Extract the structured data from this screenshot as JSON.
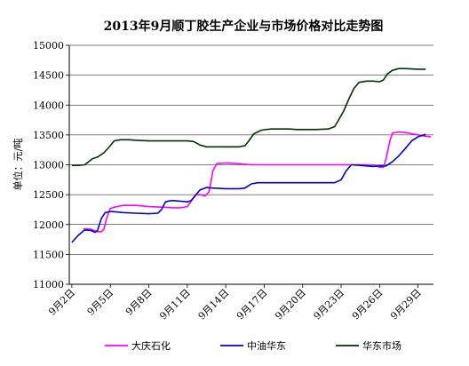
{
  "chart_data": {
    "type": "line",
    "title": "2013年9月顺丁胶生产企业与市场价格对比走势图",
    "ylabel": "单位：元/吨",
    "xlabel": "",
    "ylim": [
      11000,
      15000
    ],
    "y_ticks": [
      11000,
      11500,
      12000,
      12500,
      13000,
      13500,
      14000,
      14500,
      15000
    ],
    "x_ticks": [
      {
        "x": 2,
        "label": "9月2日"
      },
      {
        "x": 5,
        "label": "9月5日"
      },
      {
        "x": 8,
        "label": "9月8日"
      },
      {
        "x": 11,
        "label": "9月11日"
      },
      {
        "x": 14,
        "label": "9月14日"
      },
      {
        "x": 17,
        "label": "9月17日"
      },
      {
        "x": 20,
        "label": "9月20日"
      },
      {
        "x": 23,
        "label": "9月23日"
      },
      {
        "x": 26,
        "label": "9月26日"
      },
      {
        "x": 29,
        "label": "9月29日"
      }
    ],
    "xlim": [
      2,
      30
    ],
    "grid": true,
    "legend_position": "bottom",
    "series": [
      {
        "name": "大庆石化",
        "color": "#ff00ff",
        "points": [
          [
            2.9,
            11930
          ],
          [
            3.5,
            11920
          ],
          [
            4,
            11880
          ],
          [
            4.3,
            11880
          ],
          [
            4.5,
            11920
          ],
          [
            4.7,
            12100
          ],
          [
            5,
            12270
          ],
          [
            5.5,
            12300
          ],
          [
            6,
            12320
          ],
          [
            7,
            12320
          ],
          [
            8,
            12300
          ],
          [
            9,
            12290
          ],
          [
            10,
            12280
          ],
          [
            10.5,
            12280
          ],
          [
            11,
            12300
          ],
          [
            11.4,
            12420
          ],
          [
            11.7,
            12500
          ],
          [
            12,
            12500
          ],
          [
            12.4,
            12480
          ],
          [
            12.7,
            12550
          ],
          [
            13,
            12900
          ],
          [
            13.3,
            13020
          ],
          [
            14,
            13030
          ],
          [
            15,
            13020
          ],
          [
            16,
            13000
          ],
          [
            17,
            13000
          ],
          [
            18,
            13000
          ],
          [
            19,
            13000
          ],
          [
            20,
            13000
          ],
          [
            21,
            13000
          ],
          [
            22,
            13000
          ],
          [
            23,
            13000
          ],
          [
            24,
            13000
          ],
          [
            25,
            13000
          ],
          [
            25.7,
            12980
          ],
          [
            26,
            12960
          ],
          [
            26.3,
            12960
          ],
          [
            26.5,
            13100
          ],
          [
            26.8,
            13400
          ],
          [
            27,
            13530
          ],
          [
            27.5,
            13550
          ],
          [
            28,
            13540
          ],
          [
            28.5,
            13520
          ],
          [
            29,
            13500
          ],
          [
            29.5,
            13480
          ],
          [
            30,
            13470
          ]
        ]
      },
      {
        "name": "中油华东",
        "color": "#0000cc",
        "points": [
          [
            2,
            11700
          ],
          [
            2.5,
            11820
          ],
          [
            3,
            11910
          ],
          [
            3.5,
            11900
          ],
          [
            3.8,
            11870
          ],
          [
            4,
            11900
          ],
          [
            4.3,
            12100
          ],
          [
            4.6,
            12200
          ],
          [
            5,
            12220
          ],
          [
            5.5,
            12210
          ],
          [
            6,
            12200
          ],
          [
            7,
            12190
          ],
          [
            8,
            12180
          ],
          [
            8.7,
            12190
          ],
          [
            9,
            12250
          ],
          [
            9.3,
            12380
          ],
          [
            9.7,
            12400
          ],
          [
            10,
            12400
          ],
          [
            10.5,
            12390
          ],
          [
            11,
            12380
          ],
          [
            11.3,
            12400
          ],
          [
            11.6,
            12480
          ],
          [
            12,
            12580
          ],
          [
            12.5,
            12620
          ],
          [
            13,
            12610
          ],
          [
            14,
            12600
          ],
          [
            15,
            12600
          ],
          [
            15.5,
            12610
          ],
          [
            16,
            12680
          ],
          [
            16.5,
            12700
          ],
          [
            17,
            12700
          ],
          [
            18,
            12700
          ],
          [
            19,
            12700
          ],
          [
            20,
            12700
          ],
          [
            21,
            12700
          ],
          [
            22,
            12700
          ],
          [
            22.5,
            12700
          ],
          [
            23,
            12750
          ],
          [
            23.4,
            12900
          ],
          [
            23.8,
            13000
          ],
          [
            24.5,
            12990
          ],
          [
            25,
            12980
          ],
          [
            25.5,
            12970
          ],
          [
            26,
            12980
          ],
          [
            26.5,
            12980
          ],
          [
            27,
            13050
          ],
          [
            27.5,
            13150
          ],
          [
            28,
            13270
          ],
          [
            28.5,
            13400
          ],
          [
            29,
            13470
          ],
          [
            29.6,
            13510
          ]
        ]
      },
      {
        "name": "华东市场",
        "color": "#003300",
        "points": [
          [
            2,
            12990
          ],
          [
            2.5,
            12990
          ],
          [
            3,
            13000
          ],
          [
            3.3,
            13050
          ],
          [
            3.6,
            13100
          ],
          [
            4,
            13130
          ],
          [
            4.5,
            13200
          ],
          [
            5,
            13320
          ],
          [
            5.3,
            13400
          ],
          [
            5.8,
            13420
          ],
          [
            6.5,
            13420
          ],
          [
            7,
            13410
          ],
          [
            8,
            13400
          ],
          [
            9,
            13400
          ],
          [
            10,
            13400
          ],
          [
            11,
            13400
          ],
          [
            11.5,
            13390
          ],
          [
            12,
            13330
          ],
          [
            12.5,
            13300
          ],
          [
            13,
            13300
          ],
          [
            14,
            13300
          ],
          [
            15,
            13300
          ],
          [
            15.5,
            13320
          ],
          [
            15.8,
            13400
          ],
          [
            16.2,
            13520
          ],
          [
            16.8,
            13580
          ],
          [
            17.5,
            13600
          ],
          [
            18,
            13600
          ],
          [
            19,
            13600
          ],
          [
            19.5,
            13590
          ],
          [
            20,
            13590
          ],
          [
            21,
            13590
          ],
          [
            22,
            13600
          ],
          [
            22.5,
            13640
          ],
          [
            22.8,
            13750
          ],
          [
            23.2,
            13900
          ],
          [
            23.6,
            14100
          ],
          [
            24,
            14280
          ],
          [
            24.4,
            14380
          ],
          [
            25,
            14400
          ],
          [
            25.5,
            14400
          ],
          [
            26,
            14390
          ],
          [
            26.3,
            14420
          ],
          [
            26.6,
            14520
          ],
          [
            27,
            14580
          ],
          [
            27.5,
            14610
          ],
          [
            28,
            14610
          ],
          [
            29,
            14600
          ],
          [
            29.6,
            14600
          ]
        ]
      }
    ]
  }
}
